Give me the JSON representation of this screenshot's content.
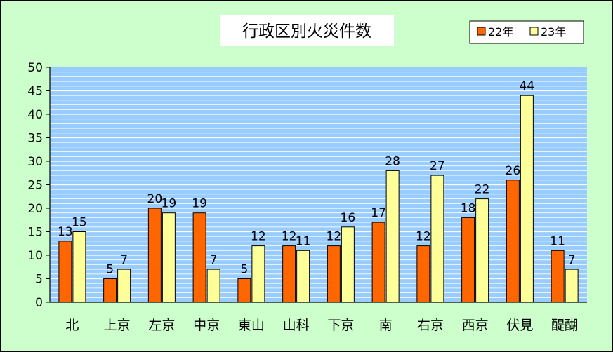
{
  "chart_data": {
    "type": "bar",
    "title": "行政区別火災件数",
    "categories": [
      "北",
      "上京",
      "左京",
      "中京",
      "東山",
      "山科",
      "下京",
      "南",
      "右京",
      "西京",
      "伏見",
      "醍醐"
    ],
    "series": [
      {
        "name": "22年",
        "values": [
          13,
          5,
          20,
          19,
          5,
          12,
          12,
          17,
          12,
          18,
          26,
          11
        ],
        "color": "#ff6600"
      },
      {
        "name": "23年",
        "values": [
          15,
          7,
          19,
          7,
          12,
          11,
          16,
          28,
          27,
          22,
          44,
          7
        ],
        "color": "#ffff99"
      }
    ],
    "ylim": [
      0,
      50
    ],
    "yticks": [
      0,
      5,
      10,
      15,
      20,
      25,
      30,
      35,
      40,
      45,
      50
    ],
    "grid": true,
    "legend_position": "top-right",
    "colors": {
      "background": "#ccffcc",
      "plot_area": "#99ccff",
      "gridline": "#ffffff"
    }
  }
}
